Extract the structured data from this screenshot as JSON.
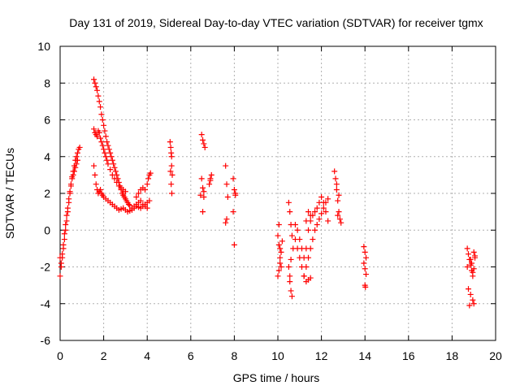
{
  "chart_data": {
    "type": "scatter",
    "title": "Day 131 of 2019, Sidereal Day-to-day VTEC variation (SDTVAR) for receiver tgmx",
    "xlabel": "GPS time / hours",
    "ylabel": "SDTVAR / TECUs",
    "xlim": [
      0,
      20
    ],
    "ylim": [
      -6,
      10
    ],
    "xticks": [
      "0",
      "2",
      "4",
      "6",
      "8",
      "10",
      "12",
      "14",
      "16",
      "18",
      "20"
    ],
    "yticks": [
      "-6",
      "-4",
      "-2",
      "0",
      "2",
      "4",
      "6",
      "8",
      "10"
    ],
    "grid": true,
    "marker": "plus",
    "color": "#ff0000",
    "series": [
      {
        "name": "SDTVAR",
        "x": [
          0.0,
          0.05,
          0.1,
          0.15,
          0.2,
          0.25,
          0.3,
          0.35,
          0.4,
          0.45,
          0.5,
          0.55,
          0.6,
          0.65,
          0.7,
          0.75,
          0.8,
          0.85,
          0.9,
          0.0,
          0.05,
          0.1,
          0.15,
          0.2,
          0.25,
          0.3,
          0.35,
          0.4,
          0.45,
          0.5,
          0.55,
          0.6,
          0.65,
          0.7,
          0.75,
          0.8,
          1.55,
          1.6,
          1.65,
          1.7,
          1.75,
          1.8,
          1.85,
          1.9,
          1.95,
          2.0,
          2.05,
          2.1,
          2.15,
          2.2,
          2.25,
          2.3,
          2.35,
          2.4,
          2.45,
          2.5,
          2.55,
          2.6,
          2.65,
          2.7,
          2.75,
          2.8,
          2.85,
          2.9,
          2.95,
          3.0,
          3.05,
          3.1,
          3.15,
          3.2,
          3.3,
          3.4,
          3.5,
          3.6,
          3.7,
          3.8,
          3.9,
          4.0,
          1.55,
          1.6,
          1.65,
          1.7,
          1.75,
          1.8,
          1.85,
          1.9,
          1.95,
          2.0,
          2.05,
          2.1,
          2.15,
          2.2,
          2.3,
          2.4,
          2.5,
          2.6,
          2.7,
          2.8,
          2.9,
          3.0,
          1.55,
          1.6,
          1.65,
          1.7,
          1.75,
          1.8,
          1.85,
          1.9,
          1.95,
          2.0,
          2.1,
          2.2,
          2.3,
          2.4,
          2.5,
          2.6,
          2.7,
          2.8,
          2.9,
          3.0,
          3.1,
          3.2,
          3.3,
          3.4,
          3.5,
          3.6,
          3.7,
          3.8,
          3.9,
          4.0,
          4.1,
          3.5,
          3.6,
          3.7,
          3.8,
          3.9,
          4.0,
          4.05,
          4.1,
          4.15,
          5.05,
          5.08,
          5.1,
          5.12,
          5.15,
          5.1,
          5.13,
          5.07,
          5.12,
          6.5,
          6.55,
          6.6,
          6.65,
          6.5,
          6.55,
          6.6,
          6.45,
          6.6,
          6.55,
          6.9,
          6.95,
          6.85,
          6.9,
          7.6,
          7.65,
          7.7,
          7.65,
          7.6,
          7.95,
          8.0,
          8.05,
          7.95,
          8.0,
          8.05,
          10.0,
          10.05,
          10.1,
          10.15,
          10.0,
          10.05,
          10.1,
          10.15,
          10.2,
          10.05,
          10.1,
          10.5,
          10.55,
          10.6,
          10.65,
          10.7,
          10.5,
          10.55,
          10.6,
          10.65,
          10.55,
          10.6,
          10.8,
          10.9,
          11.0,
          11.1,
          11.2,
          11.3,
          11.4,
          11.5,
          11.6,
          11.7,
          11.8,
          11.9,
          12.0,
          12.1,
          12.2,
          12.3,
          10.8,
          10.9,
          11.0,
          11.1,
          11.2,
          11.3,
          11.4,
          11.5,
          11.6,
          11.7,
          11.8,
          11.9,
          12.0,
          12.1,
          12.2,
          12.3,
          11.2,
          11.3,
          11.4,
          11.5,
          11.3,
          11.4,
          11.5,
          12.6,
          12.65,
          12.7,
          12.75,
          12.8,
          12.85,
          12.9,
          12.7,
          12.8,
          12.75,
          13.95,
          14.0,
          14.05,
          13.95,
          14.0,
          14.05,
          14.0,
          14.02,
          18.7,
          18.75,
          18.8,
          18.85,
          18.9,
          18.95,
          19.0,
          19.05,
          18.75,
          18.85,
          18.95,
          19.0,
          18.8,
          18.9,
          19.0,
          18.7,
          18.85,
          18.95,
          19.05
        ],
        "y": [
          -2.5,
          -2.0,
          -1.5,
          -1.0,
          -0.5,
          0.0,
          0.5,
          1.0,
          1.5,
          2.0,
          2.4,
          2.8,
          3.2,
          3.5,
          3.8,
          4.0,
          4.2,
          4.4,
          4.5,
          -1.5,
          -1.8,
          -1.3,
          -0.8,
          -0.2,
          0.3,
          0.8,
          1.2,
          1.7,
          2.1,
          2.5,
          2.9,
          3.0,
          3.2,
          3.4,
          3.6,
          3.8,
          8.2,
          8.0,
          7.8,
          7.6,
          7.3,
          7.0,
          6.7,
          6.3,
          6.0,
          5.7,
          5.4,
          5.1,
          4.8,
          4.6,
          4.4,
          4.2,
          4.0,
          3.8,
          3.6,
          3.4,
          3.2,
          3.0,
          2.8,
          2.6,
          2.4,
          2.2,
          2.0,
          1.9,
          1.8,
          1.7,
          1.6,
          1.5,
          1.4,
          1.35,
          1.2,
          1.3,
          1.4,
          1.5,
          1.6,
          1.4,
          1.3,
          1.2,
          5.5,
          5.3,
          5.2,
          5.1,
          5.4,
          5.3,
          5.0,
          4.8,
          4.6,
          4.4,
          4.2,
          4.0,
          3.8,
          3.6,
          3.3,
          3.0,
          2.8,
          2.6,
          2.4,
          2.3,
          2.2,
          2.1,
          3.5,
          3.0,
          2.5,
          2.2,
          2.0,
          2.1,
          2.2,
          2.0,
          1.9,
          1.8,
          1.7,
          1.6,
          1.5,
          1.4,
          1.3,
          1.2,
          1.1,
          1.15,
          1.2,
          1.1,
          1.0,
          1.05,
          1.1,
          1.2,
          1.3,
          1.25,
          1.2,
          1.3,
          1.4,
          1.5,
          1.6,
          1.8,
          2.0,
          2.2,
          2.3,
          2.2,
          2.5,
          2.8,
          3.0,
          3.1,
          4.8,
          4.5,
          4.2,
          3.5,
          3.0,
          2.5,
          2.0,
          3.2,
          4.0,
          5.2,
          4.9,
          4.7,
          4.5,
          2.8,
          2.3,
          2.1,
          1.9,
          1.8,
          1.0,
          2.8,
          3.0,
          2.5,
          2.7,
          3.5,
          2.5,
          1.8,
          0.6,
          0.4,
          2.8,
          2.2,
          1.9,
          1.0,
          -0.8,
          2.0,
          -0.3,
          -0.8,
          -1.5,
          -2.0,
          -2.5,
          -2.2,
          -1.8,
          -1.2,
          -0.6,
          0.3,
          -1.0,
          1.5,
          1.0,
          0.3,
          -0.3,
          -1.0,
          -2.0,
          -2.8,
          -3.3,
          -3.6,
          -2.5,
          -1.6,
          -0.5,
          -1.0,
          -1.5,
          -2.0,
          -2.5,
          -1.0,
          0.0,
          0.5,
          0.8,
          1.0,
          1.2,
          1.5,
          1.8,
          1.5,
          1.0,
          0.5,
          0.3,
          0.0,
          -0.5,
          -1.0,
          -1.5,
          -2.0,
          -1.5,
          -1.0,
          -0.5,
          0.0,
          0.3,
          0.6,
          0.9,
          1.2,
          1.5,
          1.7,
          -2.5,
          -2.8,
          -2.7,
          -2.6,
          0.5,
          1.0,
          0.8,
          3.2,
          2.8,
          2.2,
          1.6,
          1.0,
          0.6,
          0.4,
          2.5,
          1.9,
          0.8,
          -0.9,
          -1.2,
          -1.5,
          -1.8,
          -2.1,
          -2.4,
          -3.0,
          -3.1,
          -1.0,
          -1.3,
          -1.6,
          -1.9,
          -2.2,
          -2.5,
          -1.2,
          -1.5,
          -3.2,
          -3.5,
          -3.8,
          -4.0,
          -4.1,
          -1.8,
          -2.1,
          -2.0,
          -1.6,
          -2.3,
          -1.4
        ]
      }
    ]
  }
}
